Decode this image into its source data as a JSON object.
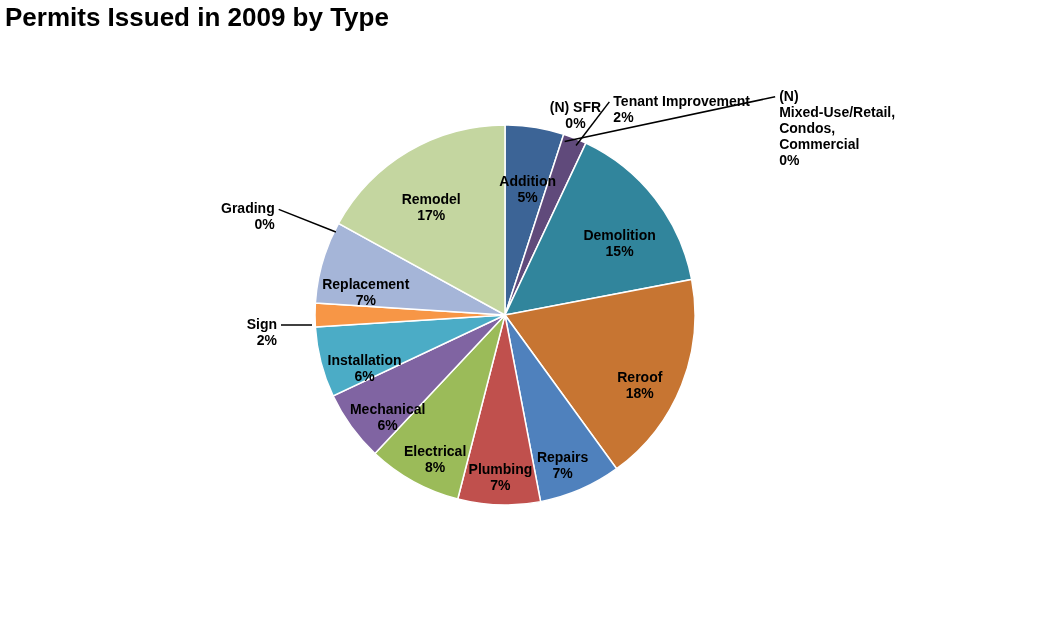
{
  "chart_data": {
    "type": "pie",
    "title": "Permits Issued in 2009 by Type",
    "categories": [
      "Addition",
      "(N) SFR",
      "(N) Mixed-Use/Retail, Condos, Commercial",
      "Tenant Improvement",
      "Demolition",
      "Reroof",
      "Repairs",
      "Plumbing",
      "Electrical",
      "Mechanical",
      "Installation",
      "Sign",
      "Replacement",
      "Grading",
      "Remodel"
    ],
    "values": [
      5,
      0,
      0,
      2,
      15,
      18,
      7,
      7,
      8,
      6,
      6,
      2,
      7,
      0,
      17
    ],
    "value_labels": [
      "5%",
      "0%",
      "0%",
      "2%",
      "15%",
      "18%",
      "7%",
      "7%",
      "8%",
      "6%",
      "6%",
      "2%",
      "7%",
      "0%",
      "17%"
    ],
    "colors": [
      "#3c6496",
      "#c0504d",
      "#d9d9d9",
      "#604a7b",
      "#31859c",
      "#c77532",
      "#4f81bd",
      "#c0504d",
      "#9bbb59",
      "#8064a2",
      "#4bacc6",
      "#f79646",
      "#a5b5d8",
      "#595959",
      "#c4d6a0"
    ],
    "legend": false
  }
}
